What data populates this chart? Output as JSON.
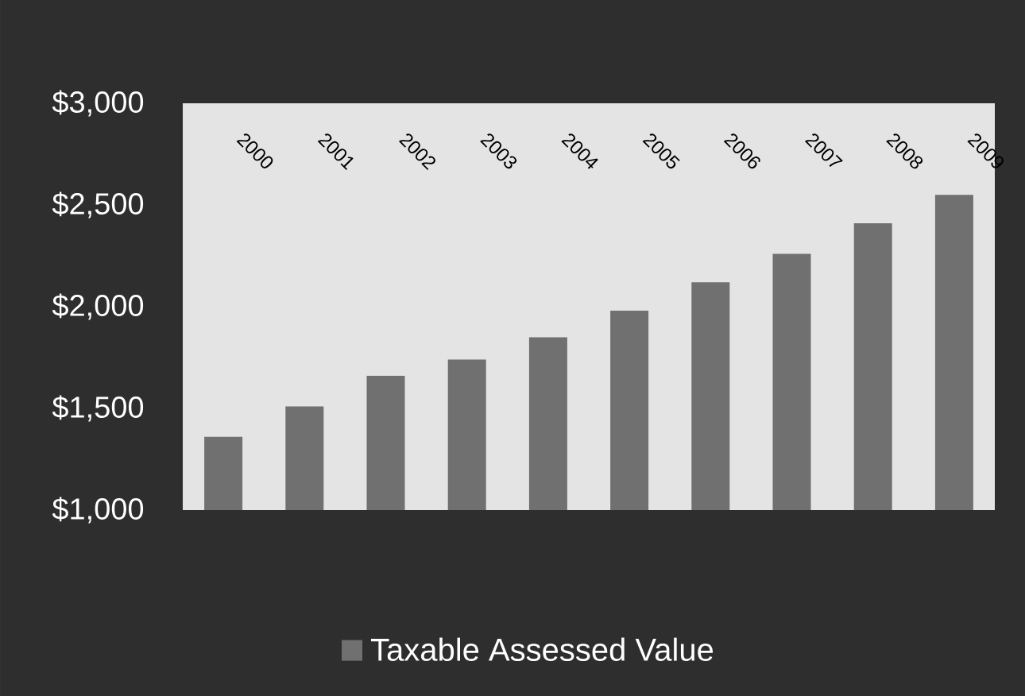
{
  "chart_data": {
    "type": "bar",
    "categories": [
      "2000",
      "2001",
      "2002",
      "2003",
      "2004",
      "2005",
      "2006",
      "2007",
      "2008",
      "2009"
    ],
    "series": [
      {
        "name": "Taxable Assessed Value",
        "color": "#707070",
        "values": [
          1360,
          1510,
          1660,
          1740,
          1850,
          1980,
          2120,
          2260,
          2410,
          2550
        ]
      }
    ],
    "ylim": [
      1000,
      3000
    ],
    "yticks": [
      {
        "value": 1000,
        "label": "$1,000"
      },
      {
        "value": 1500,
        "label": "$1,500"
      },
      {
        "value": 2000,
        "label": "$2,000"
      },
      {
        "value": 2500,
        "label": "$2,500"
      },
      {
        "value": 3000,
        "label": "$3,000"
      }
    ],
    "legend": "bottom"
  }
}
